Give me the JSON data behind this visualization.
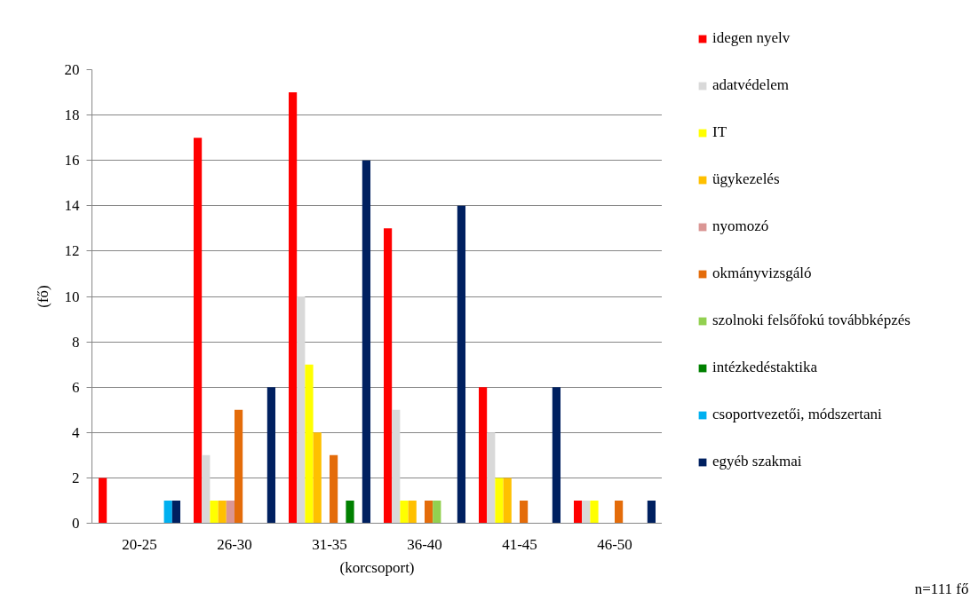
{
  "chart_data": {
    "type": "bar",
    "xlabel": "(korcsoport)",
    "ylabel": "(fő)",
    "categories": [
      "20-25",
      "26-30",
      "31-35",
      "36-40",
      "41-45",
      "46-50"
    ],
    "series": [
      {
        "name": "idegen nyelv",
        "color": "#ff0000",
        "values": [
          2,
          17,
          19,
          13,
          6,
          1
        ]
      },
      {
        "name": "adatvédelem",
        "color": "#d9d9d9",
        "values": [
          0,
          3,
          10,
          5,
          4,
          1
        ]
      },
      {
        "name": "IT",
        "color": "#ffff00",
        "values": [
          0,
          1,
          7,
          1,
          2,
          1
        ]
      },
      {
        "name": "ügykezelés",
        "color": "#ffc000",
        "values": [
          0,
          1,
          4,
          1,
          2,
          0
        ]
      },
      {
        "name": "nyomozó",
        "color": "#da9694",
        "values": [
          0,
          1,
          0,
          0,
          0,
          0
        ]
      },
      {
        "name": "okmányvizsgáló",
        "color": "#e46c0a",
        "values": [
          0,
          5,
          3,
          1,
          1,
          1
        ]
      },
      {
        "name": "szolnoki felsőfokú továbbképzés",
        "color": "#92d050",
        "values": [
          0,
          0,
          0,
          1,
          0,
          0
        ]
      },
      {
        "name": "intézkedéstaktika",
        "color": "#008000",
        "values": [
          0,
          0,
          1,
          0,
          0,
          0
        ]
      },
      {
        "name": "csoportvezetői, módszertani",
        "color": "#00b0f0",
        "values": [
          1,
          0,
          0,
          0,
          0,
          0
        ]
      },
      {
        "name": "egyéb szakmai",
        "color": "#002060",
        "values": [
          1,
          6,
          16,
          14,
          6,
          1
        ]
      }
    ],
    "ylim": [
      0,
      20
    ],
    "yticks": [
      0,
      2,
      4,
      6,
      8,
      10,
      12,
      14,
      16,
      18,
      20
    ],
    "grid": "y",
    "legend": "right",
    "annotations": [
      "n=111 fő"
    ]
  }
}
